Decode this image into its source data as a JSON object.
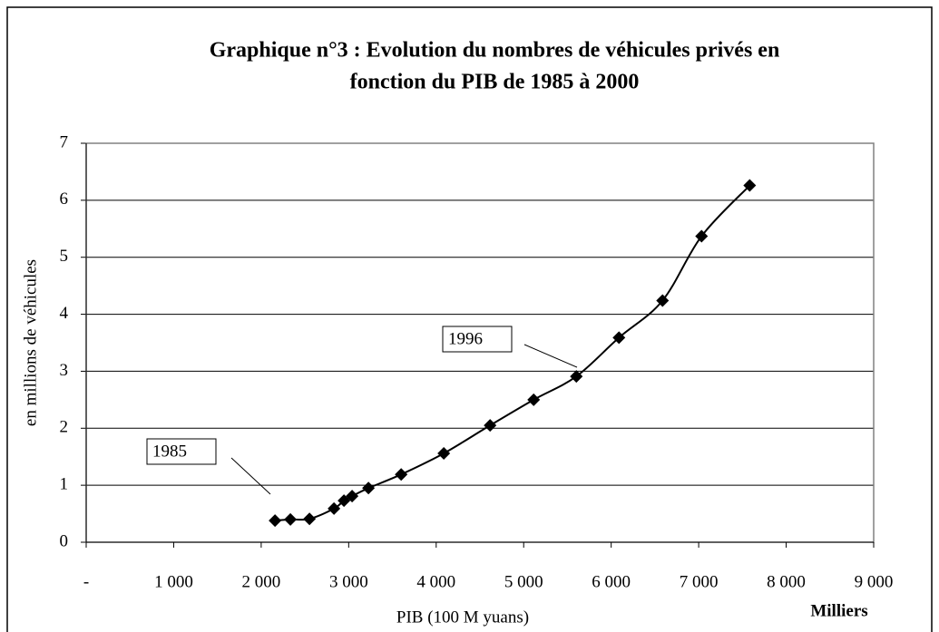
{
  "chart_data": {
    "type": "scatter",
    "title": [
      "Graphique n°3 : Evolution du nombres de véhicules privés en",
      "fonction du PIB de 1985 à 2000"
    ],
    "x_label": "PIB (100 M yuans)",
    "x_unit": "Milliers",
    "y_label": "en millions de véhicules",
    "x": [
      2158,
      2334,
      2552,
      2832,
      2946,
      3039,
      3226,
      3600,
      4087,
      4616,
      5114,
      5602,
      6089,
      6587,
      7033,
      7583
    ],
    "values": [
      0.38,
      0.4,
      0.41,
      0.59,
      0.73,
      0.81,
      0.95,
      1.19,
      1.56,
      2.05,
      2.5,
      2.91,
      3.59,
      4.24,
      5.37,
      6.26
    ],
    "color": "#000000",
    "smooth_line": true,
    "xlim": [
      0,
      9000
    ],
    "xticks": [
      {
        "value": 0,
        "label": "-"
      },
      {
        "value": 1000,
        "label": "1 000"
      },
      {
        "value": 2000,
        "label": "2 000"
      },
      {
        "value": 3000,
        "label": "3 000"
      },
      {
        "value": 4000,
        "label": "4 000"
      },
      {
        "value": 5000,
        "label": "5 000"
      },
      {
        "value": 6000,
        "label": "6 000"
      },
      {
        "value": 7000,
        "label": "7 000"
      },
      {
        "value": 8000,
        "label": "8 000"
      },
      {
        "value": 9000,
        "label": "9 000"
      }
    ],
    "ylim": [
      0,
      7
    ],
    "yticks": [
      0,
      1,
      2,
      3,
      4,
      5,
      6,
      7
    ],
    "grid": true,
    "annotations": [
      {
        "text": "1985"
      },
      {
        "text": "1996"
      }
    ]
  }
}
